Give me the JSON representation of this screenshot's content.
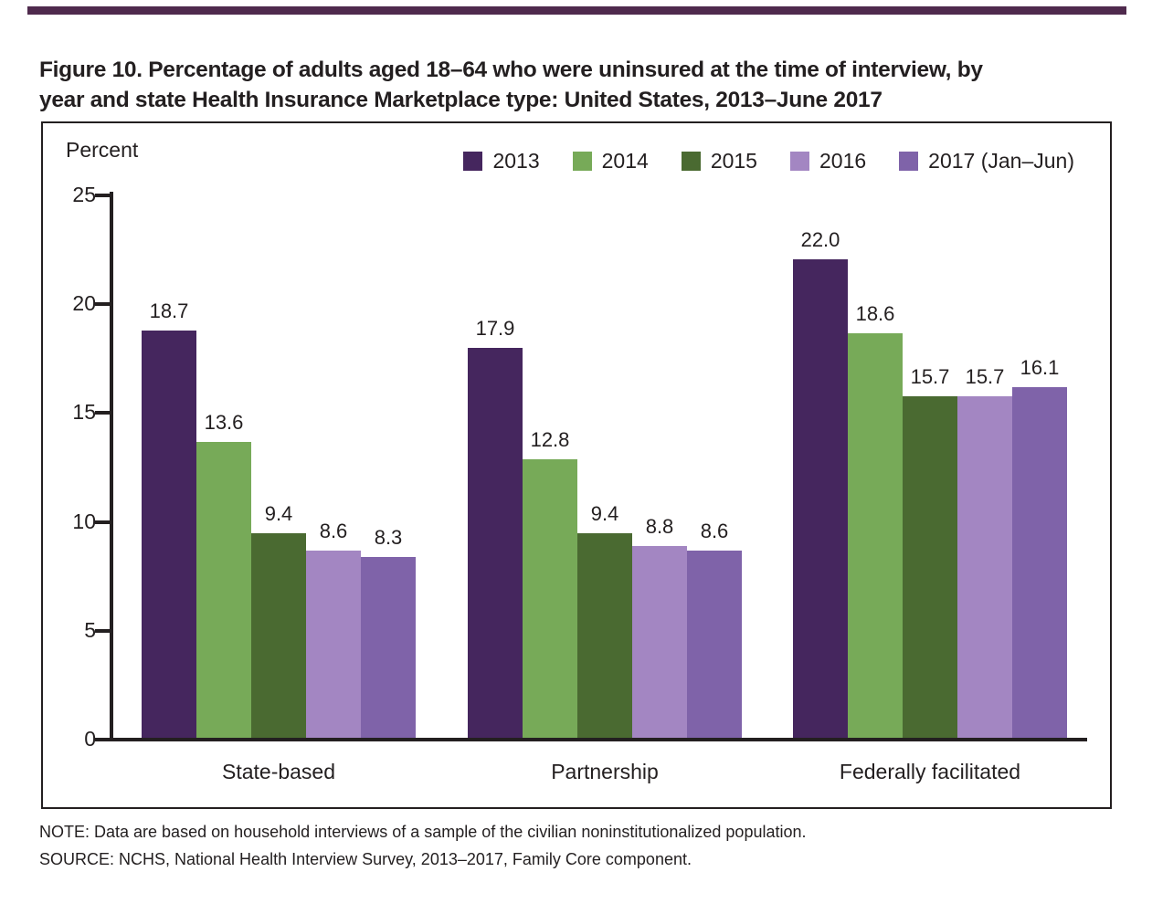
{
  "page": {
    "title_line1": "Figure 10. Percentage of adults aged 18–64 who were uninsured at the time of interview, by",
    "title_line2": "year and state Health Insurance Marketplace type: United States, 2013–June 2017",
    "note": "NOTE: Data are based on household interviews of a sample of the civilian noninstitutionalized population.",
    "source": "SOURCE: NCHS, National Health Interview Survey, 2013–2017, Family Core component."
  },
  "colors": {
    "top_rule": "#4f2a4d",
    "text": "#231f20",
    "axis": "#231f20"
  },
  "chart_data": {
    "type": "bar",
    "title": "Percentage of adults aged 18–64 who were uninsured at the time of interview, by year and state Health Insurance Marketplace type: United States, 2013–June 2017",
    "ylabel": "Percent",
    "xlabel": "",
    "ylim": [
      0,
      25
    ],
    "yticks": [
      0,
      5,
      10,
      15,
      20,
      25
    ],
    "grid": false,
    "value_labels": true,
    "legend_position": "top-right",
    "categories": [
      "State-based",
      "Partnership",
      "Federally facilitated"
    ],
    "series": [
      {
        "name": "2013",
        "color": "#45265e",
        "values": [
          18.7,
          17.9,
          22.0
        ]
      },
      {
        "name": "2014",
        "color": "#77aa58",
        "values": [
          13.6,
          12.8,
          18.6
        ]
      },
      {
        "name": "2015",
        "color": "#4a6a31",
        "values": [
          9.4,
          9.4,
          15.7
        ]
      },
      {
        "name": "2016",
        "color": "#a386c2",
        "values": [
          8.6,
          8.8,
          15.7
        ]
      },
      {
        "name": "2017 (Jan–Jun)",
        "color": "#7f63a9",
        "values": [
          8.3,
          8.6,
          16.1
        ]
      }
    ]
  }
}
